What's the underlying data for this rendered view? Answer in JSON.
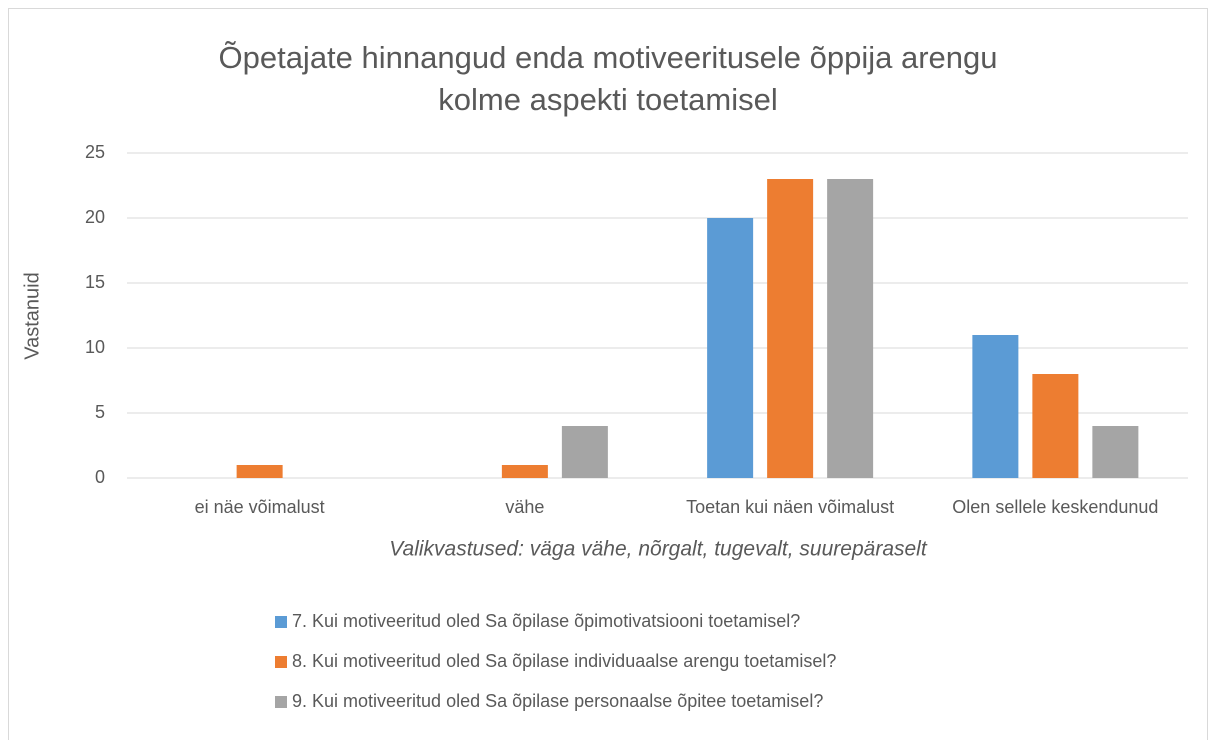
{
  "chart_data": {
    "type": "bar",
    "title": [
      "Õpetajate hinnangud enda motiveeritusele õppija arengu",
      "kolme aspekti toetamisel"
    ],
    "x_label": "Valikvastused: väga vähe, nõrgalt, tugevalt, suurepäraselt",
    "y_label": "Vastanuid",
    "categories": [
      "ei näe võimalust",
      "vähe",
      "Toetan kui näen võimalust",
      "Olen sellele keskendunud"
    ],
    "series": [
      {
        "name": "7. Kui motiveeritud oled Sa õpilase õpimotivatsiooni toetamisel?",
        "color": "#5b9bd5",
        "values": [
          0,
          0,
          20,
          11
        ]
      },
      {
        "name": "8. Kui motiveeritud oled Sa õpilase individuaalse arengu toetamisel?",
        "color": "#ed7d31",
        "values": [
          1,
          1,
          23,
          8
        ]
      },
      {
        "name": "9. Kui motiveeritud oled Sa õpilase personaalse õpitee toetamisel?",
        "color": "#a5a5a5",
        "values": [
          0,
          4,
          23,
          4
        ]
      }
    ],
    "ylim": [
      0,
      25
    ],
    "yticks": [
      0,
      5,
      10,
      15,
      20,
      25
    ],
    "grid": true,
    "legend": "bottom"
  }
}
